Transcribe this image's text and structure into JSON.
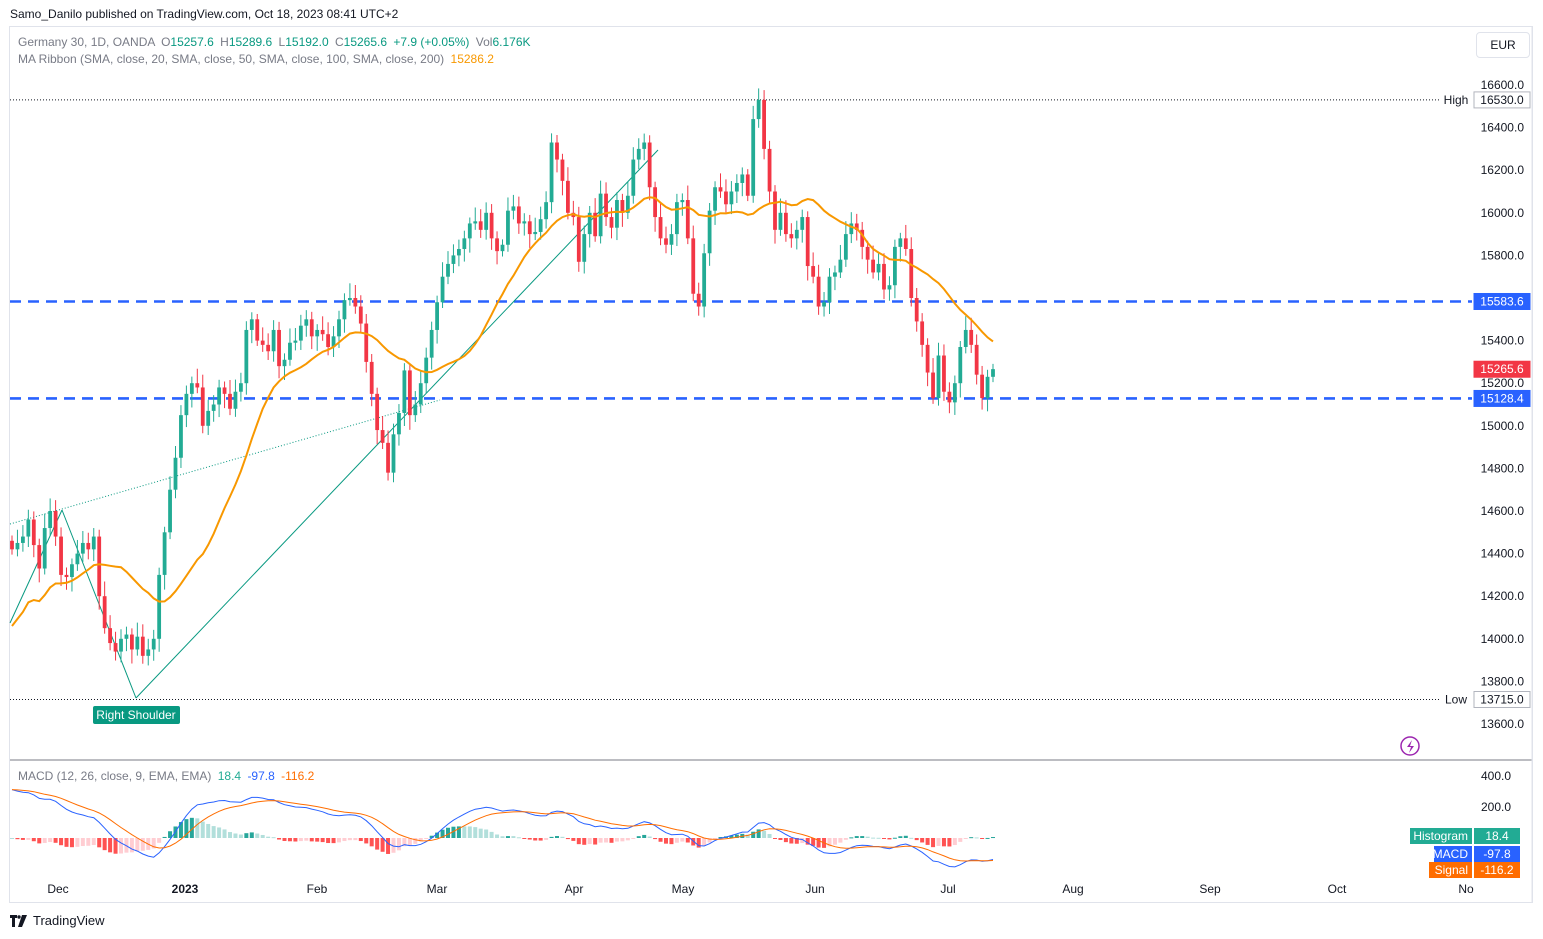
{
  "header": {
    "publisher": "Samo_Danilo published on TradingView.com, Oct 18, 2023 08:41 UTC+2"
  },
  "legend": {
    "symbol": "Germany 30, 1D, OANDA",
    "o_label": "O",
    "o": "15257.6",
    "h_label": "H",
    "h": "15289.6",
    "l_label": "L",
    "l": "15192.0",
    "c_label": "C",
    "c": "15265.6",
    "change": "+7.9 (+0.05%)",
    "vol_label": "Vol",
    "vol": "6.176K",
    "ma_label": "MA Ribbon (SMA, close, 20, SMA, close, 50, SMA, close, 100, SMA, close, 200)",
    "ma_value": "15286.2",
    "macd_label": "MACD (12, 26, close, 9, EMA, EMA)",
    "macd_hist": "18.4",
    "macd_macd": "-97.8",
    "macd_signal": "-116.2"
  },
  "currency": "EUR",
  "footer": {
    "brand": "TradingView"
  },
  "colors": {
    "up": "#22ab94",
    "down": "#f23645",
    "ma": "#f89800",
    "level": "#2962ff",
    "macd": "#2962ff",
    "signal": "#ff6d00",
    "trend": "#089981"
  },
  "chart_data": [
    {
      "type": "candlestick",
      "title": "Germany 30, 1D, OANDA",
      "ylim": [
        13500,
        16700
      ],
      "yticks": [
        13600,
        13800,
        14000,
        14200,
        14400,
        14600,
        14800,
        15000,
        15200,
        15400,
        15600,
        15800,
        16000,
        16200,
        16400,
        16600
      ],
      "ytick_labels": [
        "13600.0",
        "13800.0",
        "14000.0",
        "14200.0",
        "14400.0",
        "14600.0",
        "14800.0",
        "15000.0",
        "15200.0",
        "15400.0",
        "15600.0",
        "15800.0",
        "16000.0",
        "16200.0",
        "16400.0",
        "16600.0"
      ],
      "xticks": [
        "Dec",
        "2023",
        "Feb",
        "Mar",
        "Apr",
        "May",
        "Jun",
        "Jul",
        "Aug",
        "Sep",
        "Oct",
        "No"
      ],
      "grid": false,
      "levels": [
        {
          "label": "15583.6",
          "value": 15583.6
        },
        {
          "label": "15128.4",
          "value": 15128.4
        }
      ],
      "high": {
        "label": "High",
        "value": 16530.0,
        "text": "16530.0"
      },
      "low": {
        "label": "Low",
        "value": 13715.0,
        "text": "13715.0"
      },
      "last_price": {
        "value": 15265.6,
        "text": "15265.6"
      },
      "ma_last": {
        "value": 15286.2,
        "text": "15286.2"
      },
      "annotation": "Right Shoulder",
      "closes": [
        14420,
        14450,
        14480,
        14560,
        14440,
        14330,
        14520,
        14600,
        14480,
        14300,
        14290,
        14350,
        14400,
        14450,
        14420,
        14480,
        14200,
        14050,
        13980,
        13940,
        14000,
        14020,
        13950,
        14010,
        13920,
        13950,
        14000,
        14300,
        14500,
        14700,
        14850,
        15050,
        15150,
        15200,
        15180,
        15000,
        15070,
        15100,
        15180,
        15150,
        15080,
        15160,
        15200,
        15450,
        15500,
        15400,
        15380,
        15350,
        15450,
        15280,
        15310,
        15390,
        15400,
        15470,
        15500,
        15420,
        15450,
        15430,
        15370,
        15420,
        15500,
        15590,
        15600,
        15560,
        15480,
        15300,
        15150,
        14980,
        14920,
        14780,
        14960,
        15060,
        15260,
        15050,
        15100,
        15200,
        15320,
        15450,
        15580,
        15700,
        15760,
        15800,
        15830,
        15880,
        15950,
        15960,
        15920,
        16000,
        15880,
        15820,
        15850,
        16010,
        16030,
        15950,
        15960,
        15900,
        15910,
        15970,
        16050,
        16330,
        16250,
        16150,
        16000,
        15980,
        15770,
        15900,
        16000,
        15890,
        16090,
        15980,
        15930,
        16060,
        16000,
        16080,
        16250,
        16300,
        16330,
        16120,
        15980,
        15880,
        15850,
        15900,
        16050,
        16060,
        15880,
        15620,
        15560,
        15810,
        16010,
        16120,
        16100,
        16040,
        16100,
        16140,
        16180,
        16080,
        16440,
        16530,
        16300,
        16100,
        15920,
        16000,
        15900,
        15880,
        15920,
        15980,
        15750,
        15700,
        15560,
        15580,
        15700,
        15720,
        15780,
        15900,
        15950,
        15920,
        15840,
        15780,
        15720,
        15760,
        15640,
        15660,
        15840,
        15880,
        15830,
        15600,
        15490,
        15380,
        15250,
        15130,
        15330,
        15160,
        15110,
        15200,
        15370,
        15450,
        15380,
        15240,
        15130,
        15230,
        15266
      ]
    },
    {
      "type": "macd",
      "title": "MACD (12, 26, close, 9, EMA, EMA)",
      "ylim": [
        -200,
        450
      ],
      "yticks": [
        200,
        400
      ],
      "ytick_labels": [
        "200.0",
        "400.0"
      ],
      "series": [
        {
          "name": "Histogram",
          "last": "18.4"
        },
        {
          "name": "MACD",
          "last": "-97.8"
        },
        {
          "name": "Signal",
          "last": "-116.2"
        }
      ]
    }
  ]
}
